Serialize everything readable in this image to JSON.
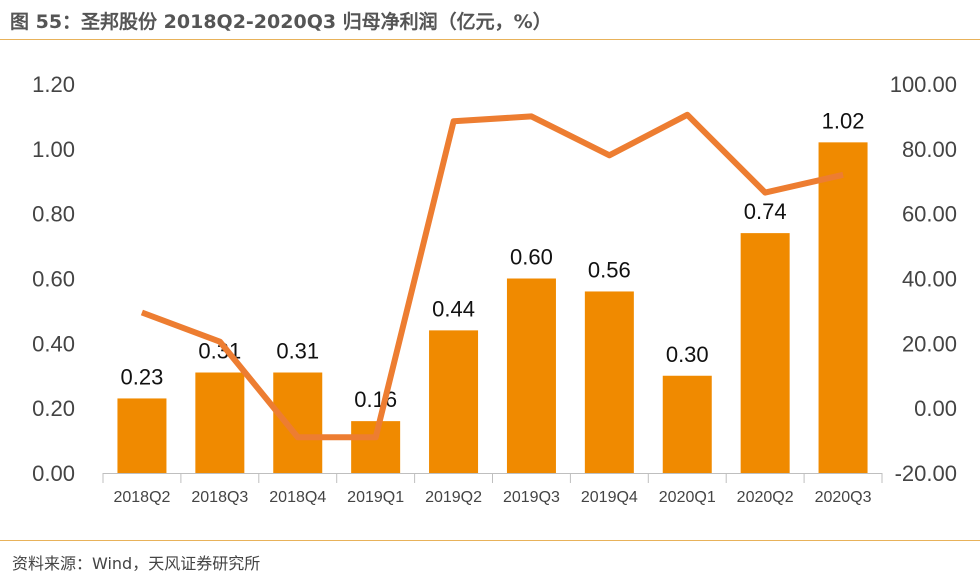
{
  "header": {
    "title": "图 55：圣邦股份 2018Q2-2020Q3 归母净利润（亿元，%）"
  },
  "footer": {
    "source": "资料来源：Wind，天风证券研究所"
  },
  "chart_data": {
    "type": "bar",
    "categories": [
      "2018Q2",
      "2018Q3",
      "2018Q4",
      "2019Q1",
      "2019Q2",
      "2019Q3",
      "2019Q4",
      "2020Q1",
      "2020Q2",
      "2020Q3"
    ],
    "series": [
      {
        "type": "bar",
        "axis": "left",
        "color": "#f08a00",
        "values": [
          0.23,
          0.31,
          0.31,
          0.16,
          0.44,
          0.6,
          0.56,
          0.3,
          0.74,
          1.02
        ],
        "labels": [
          "0.23",
          "0.31",
          "0.31",
          "0.16",
          "0.44",
          "0.60",
          "0.56",
          "0.30",
          "0.74",
          "1.02"
        ]
      },
      {
        "type": "line",
        "axis": "right",
        "color": "#ed7d31",
        "values": [
          29.5,
          20.5,
          -9.0,
          -9.0,
          88.5,
          90.0,
          78.0,
          90.5,
          66.5,
          72.0
        ]
      }
    ],
    "y_left": {
      "range": [
        0,
        1.2
      ],
      "ticks": [
        "0.00",
        "0.20",
        "0.40",
        "0.60",
        "0.80",
        "1.00",
        "1.20"
      ]
    },
    "y_right": {
      "range": [
        -20,
        100
      ],
      "ticks": [
        "-20.00",
        "0.00",
        "20.00",
        "40.00",
        "60.00",
        "80.00",
        "100.00"
      ]
    },
    "grid": false,
    "legend": "none"
  }
}
